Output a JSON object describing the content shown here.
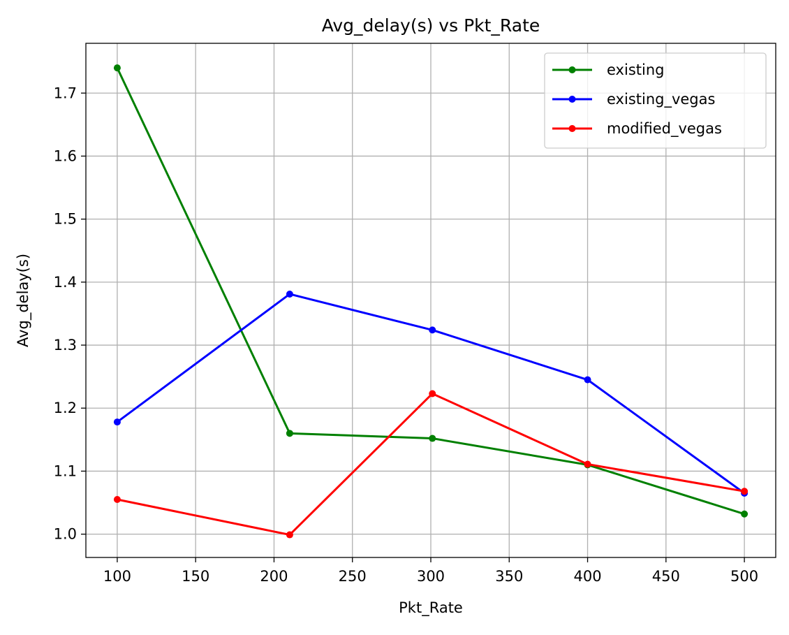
{
  "chart_data": {
    "type": "line",
    "title": "Avg_delay(s) vs Pkt_Rate",
    "xlabel": "Pkt_Rate",
    "ylabel": "Avg_delay(s)",
    "xlim": [
      80,
      520
    ],
    "ylim": [
      0.963,
      1.779
    ],
    "xticks": [
      100,
      150,
      200,
      250,
      300,
      350,
      400,
      450,
      500
    ],
    "yticks": [
      1.0,
      1.1,
      1.2,
      1.3,
      1.4,
      1.5,
      1.6,
      1.7
    ],
    "xtick_labels": [
      "100",
      "150",
      "200",
      "250",
      "300",
      "350",
      "400",
      "450",
      "500"
    ],
    "ytick_labels": [
      "1.0",
      "1.1",
      "1.2",
      "1.3",
      "1.4",
      "1.5",
      "1.6",
      "1.7"
    ],
    "grid": true,
    "legend_position": "top-right",
    "series": [
      {
        "name": "existing",
        "color": "#008000",
        "x": [
          100,
          210,
          301,
          400,
          500
        ],
        "y": [
          1.74,
          1.16,
          1.152,
          1.11,
          1.032
        ]
      },
      {
        "name": "existing_vegas",
        "color": "#0000ff",
        "x": [
          100,
          210,
          301,
          400,
          500
        ],
        "y": [
          1.178,
          1.381,
          1.324,
          1.245,
          1.065
        ]
      },
      {
        "name": "modified_vegas",
        "color": "#ff0000",
        "x": [
          100,
          210,
          301,
          400,
          500
        ],
        "y": [
          1.055,
          0.999,
          1.223,
          1.111,
          1.068
        ]
      }
    ]
  }
}
